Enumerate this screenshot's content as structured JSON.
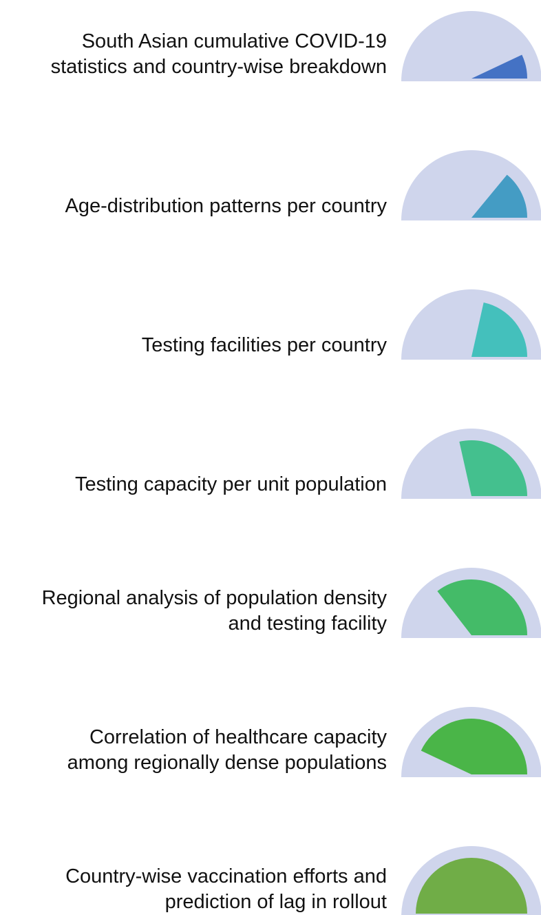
{
  "items": [
    {
      "lines": [
        "South Asian cumulative COVID-19",
        "statistics and country-wise breakdown"
      ],
      "level": 0.14,
      "color": "#4472c4"
    },
    {
      "lines": [
        "Age-distribution patterns per country"
      ],
      "level": 0.28,
      "color": "#449cc4"
    },
    {
      "lines": [
        "Testing facilities per country"
      ],
      "level": 0.43,
      "color": "#44c0bc"
    },
    {
      "lines": [
        "Testing capacity per unit population"
      ],
      "level": 0.57,
      "color": "#44c08e"
    },
    {
      "lines": [
        "Regional analysis of population density",
        "and testing facility"
      ],
      "level": 0.71,
      "color": "#44bb68"
    },
    {
      "lines": [
        "Correlation of healthcare capacity",
        "among regionally dense populations"
      ],
      "level": 0.86,
      "color": "#4ab548"
    },
    {
      "lines": [
        "Country-wise vaccination efforts and",
        "prediction of lag in rollout"
      ],
      "level": 1.0,
      "color": "#70ad47"
    }
  ],
  "gauge_background_color": "#cfd5ec"
}
